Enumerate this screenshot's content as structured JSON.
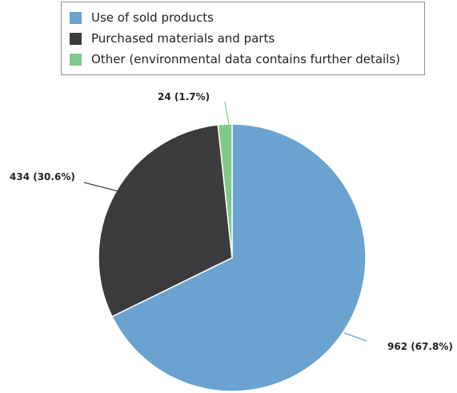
{
  "chart_data": {
    "type": "pie",
    "title": "",
    "legend_position": "top",
    "categories": [
      "Use of sold products",
      "Purchased materials and parts",
      "Other (environmental data contains further details)"
    ],
    "values": [
      962,
      434,
      24
    ],
    "percentages": [
      67.8,
      30.6,
      1.7
    ],
    "data_labels": [
      "962 (67.8%)",
      "434 (30.6%)",
      "24 (1.7%)"
    ],
    "colors": [
      "#6aa3d0",
      "#3b3a3d",
      "#7fc98b"
    ]
  }
}
